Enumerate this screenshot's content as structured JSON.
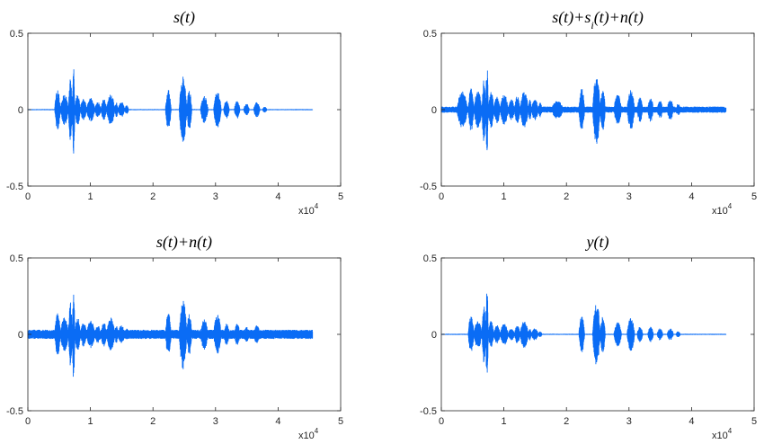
{
  "chart_data": [
    {
      "type": "line",
      "title": "s(t)",
      "xlim": [
        0,
        50000
      ],
      "ylim": [
        -0.5,
        0.5
      ],
      "x_exponent_label": "x10",
      "x_exponent_power": "4",
      "x_ticks": [
        0,
        1,
        2,
        3,
        4,
        5
      ],
      "y_ticks": [
        0.5,
        0,
        -0.5
      ],
      "signal_end": 45500,
      "color": "#0a6cf5",
      "noise_floor": 0.003,
      "bursts": [
        {
          "start": 4300,
          "end": 5200,
          "peak": 0.13
        },
        {
          "start": 5200,
          "end": 6500,
          "peak": 0.1
        },
        {
          "start": 6500,
          "end": 7100,
          "peak": 0.2
        },
        {
          "start": 7100,
          "end": 7500,
          "peak": 0.3
        },
        {
          "start": 7500,
          "end": 8400,
          "peak": 0.1
        },
        {
          "start": 8400,
          "end": 9400,
          "peak": 0.07
        },
        {
          "start": 9400,
          "end": 10700,
          "peak": 0.08
        },
        {
          "start": 10700,
          "end": 11700,
          "peak": 0.05
        },
        {
          "start": 11700,
          "end": 12600,
          "peak": 0.07
        },
        {
          "start": 12600,
          "end": 13900,
          "peak": 0.1
        },
        {
          "start": 13900,
          "end": 14400,
          "peak": 0.05
        },
        {
          "start": 14400,
          "end": 15500,
          "peak": 0.05
        },
        {
          "start": 15500,
          "end": 16100,
          "peak": 0.03
        },
        {
          "start": 22000,
          "end": 22900,
          "peak": 0.13
        },
        {
          "start": 24200,
          "end": 25400,
          "peak": 0.22
        },
        {
          "start": 25400,
          "end": 26200,
          "peak": 0.13
        },
        {
          "start": 27600,
          "end": 28800,
          "peak": 0.09
        },
        {
          "start": 29700,
          "end": 30900,
          "peak": 0.12
        },
        {
          "start": 31300,
          "end": 32200,
          "peak": 0.06
        },
        {
          "start": 33000,
          "end": 33900,
          "peak": 0.06
        },
        {
          "start": 34500,
          "end": 35400,
          "peak": 0.04
        },
        {
          "start": 36100,
          "end": 37100,
          "peak": 0.05
        },
        {
          "start": 37500,
          "end": 38200,
          "peak": 0.02
        }
      ]
    },
    {
      "type": "line",
      "title": "s(t)+s_i(t)+n(t)",
      "xlim": [
        0,
        50000
      ],
      "ylim": [
        -0.5,
        0.5
      ],
      "x_exponent_label": "x10",
      "x_exponent_power": "4",
      "x_ticks": [
        0,
        1,
        2,
        3,
        4,
        5
      ],
      "y_ticks": [
        0.5,
        0,
        -0.5
      ],
      "signal_end": 45500,
      "color": "#0a6cf5",
      "noise_floor": 0.02,
      "bursts": [
        {
          "start": 2500,
          "end": 4200,
          "peak": 0.12
        },
        {
          "start": 4300,
          "end": 5200,
          "peak": 0.14
        },
        {
          "start": 5200,
          "end": 6500,
          "peak": 0.12
        },
        {
          "start": 6500,
          "end": 7100,
          "peak": 0.21
        },
        {
          "start": 7100,
          "end": 7500,
          "peak": 0.3
        },
        {
          "start": 7500,
          "end": 8400,
          "peak": 0.12
        },
        {
          "start": 8400,
          "end": 9400,
          "peak": 0.09
        },
        {
          "start": 9400,
          "end": 10700,
          "peak": 0.1
        },
        {
          "start": 10700,
          "end": 11700,
          "peak": 0.07
        },
        {
          "start": 11700,
          "end": 12600,
          "peak": 0.09
        },
        {
          "start": 12600,
          "end": 13900,
          "peak": 0.12
        },
        {
          "start": 13900,
          "end": 14400,
          "peak": 0.07
        },
        {
          "start": 14400,
          "end": 15500,
          "peak": 0.07
        },
        {
          "start": 15500,
          "end": 16100,
          "peak": 0.05
        },
        {
          "start": 17600,
          "end": 19500,
          "peak": 0.06
        },
        {
          "start": 22000,
          "end": 22900,
          "peak": 0.14
        },
        {
          "start": 24200,
          "end": 25400,
          "peak": 0.23
        },
        {
          "start": 25400,
          "end": 26200,
          "peak": 0.14
        },
        {
          "start": 27600,
          "end": 28800,
          "peak": 0.1
        },
        {
          "start": 29700,
          "end": 30900,
          "peak": 0.13
        },
        {
          "start": 31300,
          "end": 32200,
          "peak": 0.08
        },
        {
          "start": 33000,
          "end": 33900,
          "peak": 0.08
        },
        {
          "start": 34500,
          "end": 35400,
          "peak": 0.06
        },
        {
          "start": 36100,
          "end": 37100,
          "peak": 0.07
        },
        {
          "start": 37500,
          "end": 38200,
          "peak": 0.04
        }
      ]
    },
    {
      "type": "line",
      "title": "s(t)+n(t)",
      "xlim": [
        0,
        50000
      ],
      "ylim": [
        -0.5,
        0.5
      ],
      "x_exponent_label": "x10",
      "x_exponent_power": "4",
      "x_ticks": [
        0,
        1,
        2,
        3,
        4,
        5
      ],
      "y_ticks": [
        0.5,
        0,
        -0.5
      ],
      "signal_end": 45500,
      "color": "#0a6cf5",
      "noise_floor": 0.03,
      "bursts": [
        {
          "start": 4300,
          "end": 5200,
          "peak": 0.14
        },
        {
          "start": 5200,
          "end": 6500,
          "peak": 0.11
        },
        {
          "start": 6500,
          "end": 7100,
          "peak": 0.21
        },
        {
          "start": 7100,
          "end": 7500,
          "peak": 0.31
        },
        {
          "start": 7500,
          "end": 8400,
          "peak": 0.11
        },
        {
          "start": 8400,
          "end": 9400,
          "peak": 0.08
        },
        {
          "start": 9400,
          "end": 10700,
          "peak": 0.09
        },
        {
          "start": 10700,
          "end": 11700,
          "peak": 0.06
        },
        {
          "start": 11700,
          "end": 12600,
          "peak": 0.08
        },
        {
          "start": 12600,
          "end": 13900,
          "peak": 0.11
        },
        {
          "start": 13900,
          "end": 14400,
          "peak": 0.06
        },
        {
          "start": 14400,
          "end": 15500,
          "peak": 0.06
        },
        {
          "start": 15500,
          "end": 16100,
          "peak": 0.04
        },
        {
          "start": 22000,
          "end": 22900,
          "peak": 0.14
        },
        {
          "start": 24200,
          "end": 25400,
          "peak": 0.23
        },
        {
          "start": 25400,
          "end": 26200,
          "peak": 0.14
        },
        {
          "start": 27600,
          "end": 28800,
          "peak": 0.1
        },
        {
          "start": 29700,
          "end": 30900,
          "peak": 0.13
        },
        {
          "start": 31300,
          "end": 32200,
          "peak": 0.07
        },
        {
          "start": 33000,
          "end": 33900,
          "peak": 0.07
        },
        {
          "start": 34500,
          "end": 35400,
          "peak": 0.05
        },
        {
          "start": 36100,
          "end": 37100,
          "peak": 0.06
        },
        {
          "start": 37500,
          "end": 38200,
          "peak": 0.03
        }
      ]
    },
    {
      "type": "line",
      "title": "y(t)",
      "xlim": [
        0,
        50000
      ],
      "ylim": [
        -0.5,
        0.5
      ],
      "x_exponent_label": "x10",
      "x_exponent_power": "4",
      "x_ticks": [
        0,
        1,
        2,
        3,
        4,
        5
      ],
      "y_ticks": [
        0.5,
        0,
        -0.5
      ],
      "signal_end": 45500,
      "color": "#0a6cf5",
      "noise_floor": 0.003,
      "bursts": [
        {
          "start": 4300,
          "end": 5200,
          "peak": 0.12
        },
        {
          "start": 5200,
          "end": 6500,
          "peak": 0.09
        },
        {
          "start": 6500,
          "end": 7100,
          "peak": 0.19
        },
        {
          "start": 7100,
          "end": 7500,
          "peak": 0.3
        },
        {
          "start": 7500,
          "end": 8400,
          "peak": 0.09
        },
        {
          "start": 8400,
          "end": 9400,
          "peak": 0.06
        },
        {
          "start": 9400,
          "end": 10700,
          "peak": 0.07
        },
        {
          "start": 10700,
          "end": 11700,
          "peak": 0.04
        },
        {
          "start": 11700,
          "end": 12600,
          "peak": 0.06
        },
        {
          "start": 12600,
          "end": 13900,
          "peak": 0.09
        },
        {
          "start": 13900,
          "end": 14400,
          "peak": 0.04
        },
        {
          "start": 14400,
          "end": 15500,
          "peak": 0.04
        },
        {
          "start": 15500,
          "end": 16100,
          "peak": 0.02
        },
        {
          "start": 22000,
          "end": 22900,
          "peak": 0.12
        },
        {
          "start": 24200,
          "end": 25400,
          "peak": 0.21
        },
        {
          "start": 25400,
          "end": 26200,
          "peak": 0.12
        },
        {
          "start": 27600,
          "end": 28800,
          "peak": 0.08
        },
        {
          "start": 29700,
          "end": 30900,
          "peak": 0.11
        },
        {
          "start": 31300,
          "end": 32200,
          "peak": 0.05
        },
        {
          "start": 33000,
          "end": 33900,
          "peak": 0.05
        },
        {
          "start": 34500,
          "end": 35400,
          "peak": 0.04
        },
        {
          "start": 36100,
          "end": 37100,
          "peak": 0.04
        },
        {
          "start": 37500,
          "end": 38200,
          "peak": 0.02
        }
      ]
    }
  ]
}
